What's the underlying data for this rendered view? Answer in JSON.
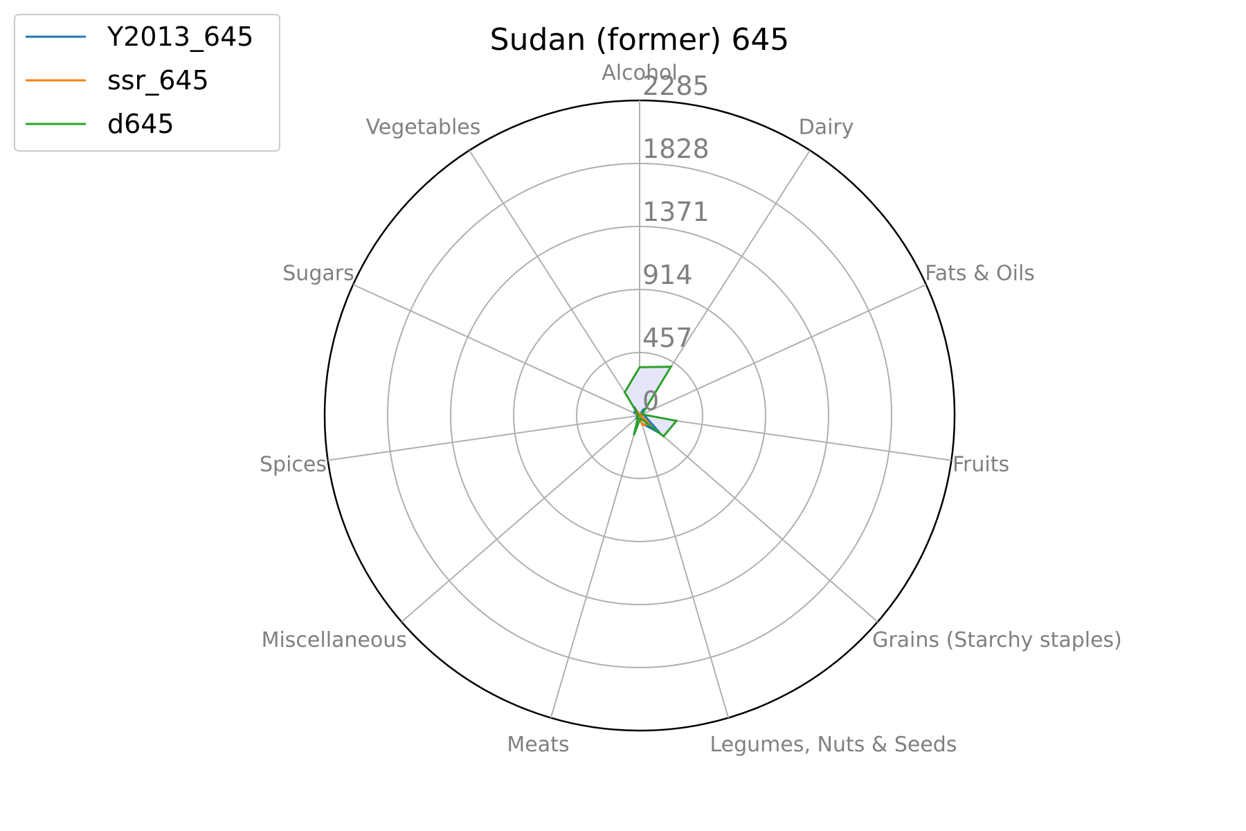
{
  "chart_data": {
    "type": "radar",
    "title": "Sudan (former) 645",
    "categories": [
      "Alcohol",
      "Dairy",
      "Fats & Oils",
      "Fruits",
      "Grains (Starchy staples)",
      "Legumes, Nuts & Seeds",
      "Meats",
      "Miscellaneous",
      "Spices",
      "Sugars",
      "Vegetables"
    ],
    "rticks": [
      "0",
      "457",
      "914",
      "1371",
      "1828",
      "2285"
    ],
    "rlim": [
      0,
      2285
    ],
    "grid": true,
    "legend_position": "upper-left",
    "series": [
      {
        "name": "Y2013_645",
        "color": "#1f77b4",
        "values": [
          5,
          60,
          25,
          40,
          200,
          60,
          20,
          30,
          5,
          40,
          60
        ],
        "fill": false
      },
      {
        "name": "ssr_645",
        "color": "#ff7f0e",
        "values": [
          10,
          15,
          10,
          10,
          95,
          70,
          10,
          10,
          5,
          25,
          40
        ],
        "fill": false
      },
      {
        "name": "d645",
        "color": "#2ca02c",
        "values": [
          350,
          420,
          20,
          270,
          230,
          20,
          150,
          15,
          20,
          10,
          200
        ],
        "fill": true,
        "fill_color": "#e6e6fa"
      }
    ]
  }
}
